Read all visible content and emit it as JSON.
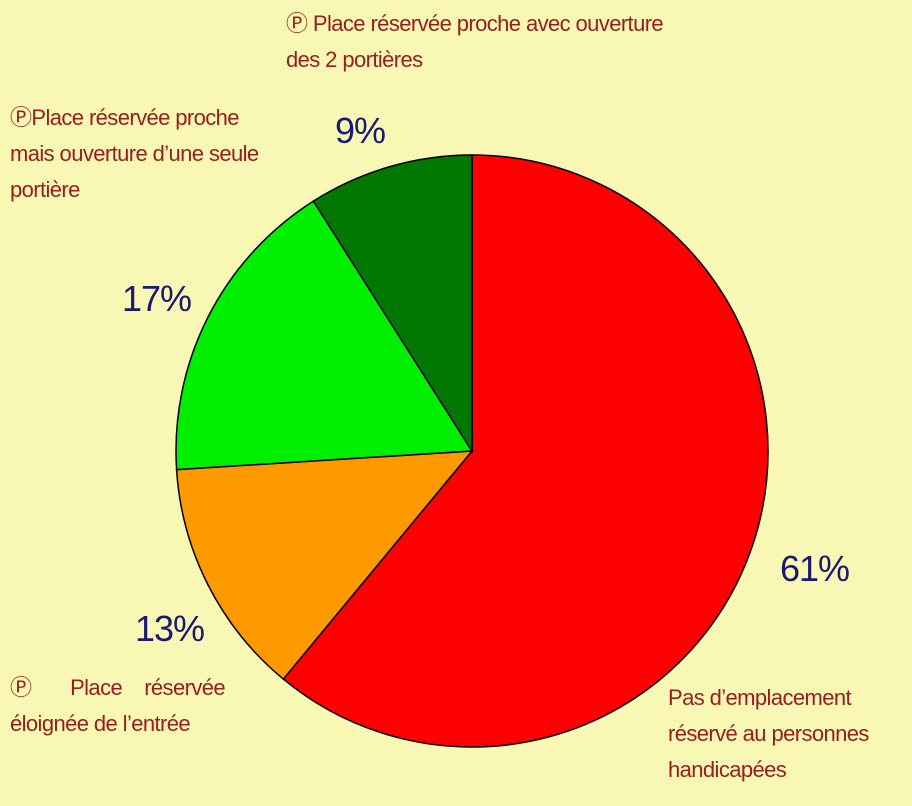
{
  "chart_data": {
    "type": "pie",
    "categories": [
      "Pas d’emplacement réservé au personnes handicapées",
      "Ⓟ Place réservée éloignée de l’entrée",
      "ⓅPlace réservée proche mais ouverture d’une seule portière",
      "Ⓟ Place réservée proche avec ouverture des 2 portières"
    ],
    "values": [
      61,
      13,
      17,
      9
    ],
    "value_labels": [
      "61%",
      "13%",
      "17%",
      "9%"
    ],
    "colors": [
      "#ff0000",
      "#ff9900",
      "#00ee00",
      "#007700"
    ]
  }
}
